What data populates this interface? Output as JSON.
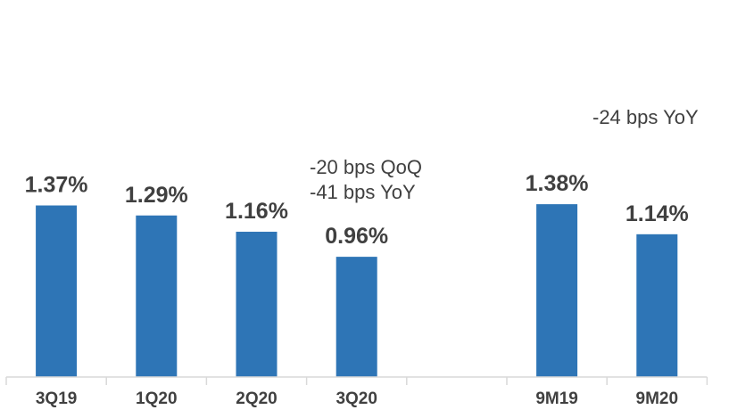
{
  "chart_data": {
    "type": "bar",
    "categories": [
      "3Q19",
      "1Q20",
      "2Q20",
      "3Q20",
      "",
      "9M19",
      "9M20"
    ],
    "values": [
      1.37,
      1.29,
      1.16,
      0.96,
      null,
      1.38,
      1.14
    ],
    "value_labels": [
      "1.37%",
      "1.29%",
      "1.16%",
      "0.96%",
      "",
      "1.38%",
      "1.14%"
    ],
    "ylim": [
      0,
      1.6
    ],
    "grid": false,
    "legend": "none",
    "bar_color": "#2e75b6",
    "annotations": {
      "quarter_change_qoq": "-20 bps QoQ",
      "quarter_change_yoy": "-41 bps YoY",
      "ytd_change_yoy": "-24 bps YoY"
    }
  }
}
